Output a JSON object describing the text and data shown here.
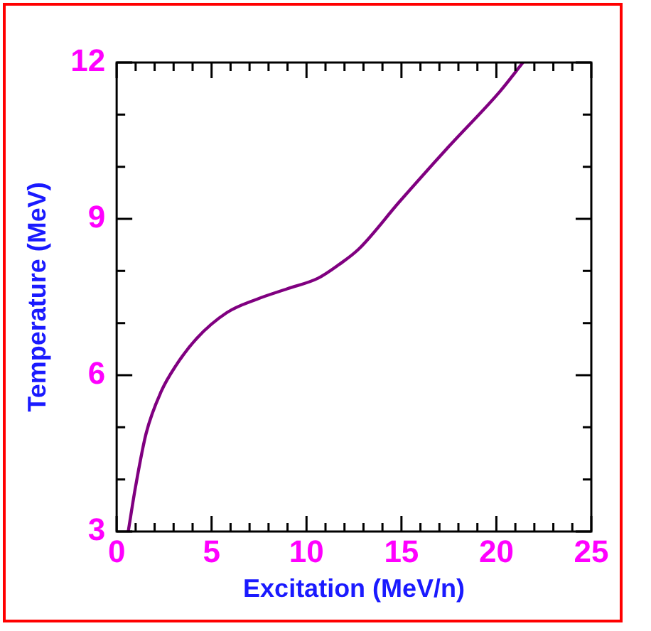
{
  "chart_data": {
    "type": "line",
    "xlabel": "Excitation (MeV/n)",
    "ylabel": "Temperature (MeV)",
    "x": [
      0.61,
      1.0,
      1.55,
      2.35,
      3.15,
      4.2,
      5.8,
      7.4,
      9.0,
      10.6,
      11.7,
      12.75,
      14.9,
      17.5,
      20.2,
      21.4
    ],
    "series": [
      {
        "color": "#800080",
        "values": [
          3,
          3.87,
          4.88,
          5.69,
          6.2,
          6.7,
          7.2,
          7.46,
          7.66,
          7.86,
          8.12,
          8.42,
          9.33,
          10.39,
          11.45,
          12
        ]
      }
    ],
    "xlim": [
      0,
      25
    ],
    "xticks": [
      0,
      {
        "value": 1,
        "label": null
      },
      {
        "value": 2,
        "label": null
      },
      {
        "value": 3,
        "label": null
      },
      {
        "value": 4,
        "label": null
      },
      5,
      {
        "value": 6,
        "label": null
      },
      {
        "value": 7,
        "label": null
      },
      {
        "value": 8,
        "label": null
      },
      {
        "value": 9,
        "label": null
      },
      10,
      {
        "value": 11,
        "label": null
      },
      {
        "value": 12,
        "label": null
      },
      {
        "value": 13,
        "label": null
      },
      {
        "value": 14,
        "label": null
      },
      15,
      {
        "value": 16,
        "label": null
      },
      {
        "value": 17,
        "label": null
      },
      {
        "value": 18,
        "label": null
      },
      {
        "value": 19,
        "label": null
      },
      20,
      {
        "value": 21,
        "label": null
      },
      {
        "value": 22,
        "label": null
      },
      {
        "value": 23,
        "label": null
      },
      {
        "value": 24,
        "label": null
      },
      25
    ],
    "ylim": [
      3,
      12
    ],
    "yticks": [
      3,
      {
        "value": 4,
        "label": null
      },
      {
        "value": 5,
        "label": null
      },
      6,
      {
        "value": 7,
        "label": null
      },
      {
        "value": 8,
        "label": null
      },
      9,
      {
        "value": 10,
        "label": null
      },
      {
        "value": 11,
        "label": null
      },
      12
    ],
    "grid": false,
    "legend": false,
    "marker": "none",
    "line_style": "solid"
  }
}
